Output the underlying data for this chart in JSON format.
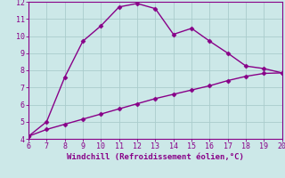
{
  "xlabel": "Windchill (Refroidissement éolien,°C)",
  "xlim": [
    6,
    20
  ],
  "ylim": [
    4,
    12
  ],
  "xticks": [
    6,
    7,
    8,
    9,
    10,
    11,
    12,
    13,
    14,
    15,
    16,
    17,
    18,
    19,
    20
  ],
  "yticks": [
    4,
    5,
    6,
    7,
    8,
    9,
    10,
    11,
    12
  ],
  "line1_x": [
    6,
    7,
    8,
    9,
    10,
    11,
    12,
    13,
    14,
    15,
    16,
    17,
    18,
    19,
    20
  ],
  "line1_y": [
    4.15,
    5.0,
    7.6,
    9.7,
    10.6,
    11.7,
    11.9,
    11.6,
    10.1,
    10.45,
    9.7,
    9.0,
    8.25,
    8.1,
    7.85
  ],
  "line2_x": [
    6,
    7,
    8,
    9,
    10,
    11,
    12,
    13,
    14,
    15,
    16,
    17,
    18,
    19,
    20
  ],
  "line2_y": [
    4.15,
    4.55,
    4.85,
    5.15,
    5.45,
    5.75,
    6.05,
    6.35,
    6.6,
    6.85,
    7.1,
    7.4,
    7.65,
    7.82,
    7.85
  ],
  "line_color": "#880088",
  "bg_color": "#cce8e8",
  "grid_color": "#aacccc",
  "tick_color": "#880088",
  "label_color": "#880088",
  "marker": "D",
  "marker_size": 2.5,
  "linewidth": 1.0
}
